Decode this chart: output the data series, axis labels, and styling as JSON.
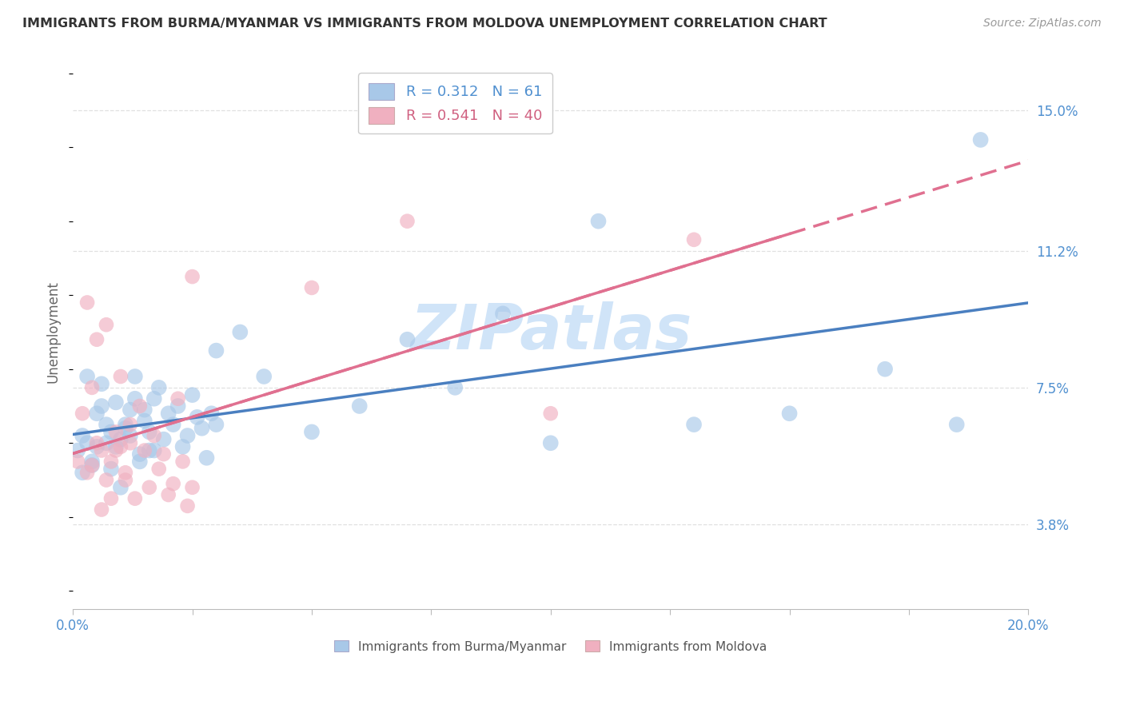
{
  "title": "IMMIGRANTS FROM BURMA/MYANMAR VS IMMIGRANTS FROM MOLDOVA UNEMPLOYMENT CORRELATION CHART",
  "source": "Source: ZipAtlas.com",
  "ylabel": "Unemployment",
  "yticks": [
    3.8,
    7.5,
    11.2,
    15.0
  ],
  "ytick_labels": [
    "3.8%",
    "7.5%",
    "11.2%",
    "15.0%"
  ],
  "xmin": 0.0,
  "xmax": 0.2,
  "ymin": 1.5,
  "ymax": 16.5,
  "legend_blue_R": "R = 0.312",
  "legend_blue_N": "N = 61",
  "legend_pink_R": "R = 0.541",
  "legend_pink_N": "N = 40",
  "color_blue": "#a8c8e8",
  "color_pink": "#f0b0c0",
  "color_blue_line": "#4a7fc0",
  "color_pink_line": "#e07090",
  "color_blue_text": "#5090d0",
  "color_pink_text": "#d06080",
  "color_axis_text": "#5090d0",
  "watermark_color": "#d0e4f8",
  "background_color": "#ffffff",
  "grid_color": "#e0e0e0",
  "blue_scatter_x": [
    0.001,
    0.002,
    0.003,
    0.004,
    0.005,
    0.006,
    0.007,
    0.008,
    0.009,
    0.01,
    0.011,
    0.012,
    0.013,
    0.014,
    0.015,
    0.016,
    0.017,
    0.018,
    0.019,
    0.02,
    0.021,
    0.022,
    0.023,
    0.024,
    0.025,
    0.026,
    0.027,
    0.028,
    0.029,
    0.03,
    0.002,
    0.003,
    0.004,
    0.005,
    0.006,
    0.007,
    0.008,
    0.009,
    0.01,
    0.011,
    0.012,
    0.013,
    0.014,
    0.015,
    0.016,
    0.017,
    0.03,
    0.035,
    0.04,
    0.05,
    0.06,
    0.07,
    0.08,
    0.09,
    0.1,
    0.11,
    0.13,
    0.15,
    0.17,
    0.185,
    0.19
  ],
  "blue_scatter_y": [
    5.8,
    6.2,
    6.0,
    5.5,
    6.8,
    7.0,
    6.5,
    6.3,
    5.9,
    6.1,
    6.4,
    6.9,
    7.2,
    5.7,
    6.6,
    6.3,
    5.8,
    7.5,
    6.1,
    6.8,
    6.5,
    7.0,
    5.9,
    6.2,
    7.3,
    6.7,
    6.4,
    5.6,
    6.8,
    6.5,
    5.2,
    7.8,
    5.4,
    5.9,
    7.6,
    6.0,
    5.3,
    7.1,
    4.8,
    6.5,
    6.2,
    7.8,
    5.5,
    6.9,
    5.8,
    7.2,
    8.5,
    9.0,
    7.8,
    6.3,
    7.0,
    8.8,
    7.5,
    9.5,
    6.0,
    12.0,
    6.5,
    6.8,
    8.0,
    6.5,
    14.2
  ],
  "pink_scatter_x": [
    0.001,
    0.002,
    0.003,
    0.004,
    0.005,
    0.006,
    0.007,
    0.008,
    0.009,
    0.01,
    0.011,
    0.012,
    0.013,
    0.014,
    0.015,
    0.016,
    0.017,
    0.018,
    0.019,
    0.02,
    0.021,
    0.022,
    0.023,
    0.024,
    0.025,
    0.003,
    0.004,
    0.005,
    0.006,
    0.007,
    0.008,
    0.009,
    0.01,
    0.011,
    0.012,
    0.025,
    0.05,
    0.07,
    0.1,
    0.13
  ],
  "pink_scatter_y": [
    5.5,
    6.8,
    5.2,
    7.5,
    6.0,
    5.8,
    9.2,
    5.5,
    6.3,
    5.9,
    5.0,
    6.5,
    4.5,
    7.0,
    5.8,
    4.8,
    6.2,
    5.3,
    5.7,
    4.6,
    4.9,
    7.2,
    5.5,
    4.3,
    4.8,
    9.8,
    5.4,
    8.8,
    4.2,
    5.0,
    4.5,
    5.8,
    7.8,
    5.2,
    6.0,
    10.5,
    10.2,
    12.0,
    6.8,
    11.5
  ]
}
